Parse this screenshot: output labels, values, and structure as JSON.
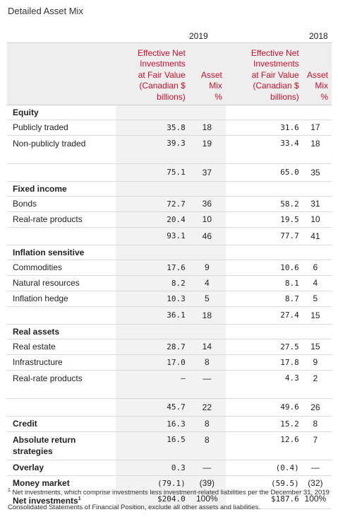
{
  "title": "Detailed Asset Mix",
  "years": {
    "y2019": "2019",
    "y2018": "2018"
  },
  "headers": {
    "effective_net": [
      "Effective Net",
      "Investments",
      "at Fair Value",
      "(Canadian $",
      "billions)"
    ],
    "asset_mix": [
      "Asset",
      "Mix",
      "%"
    ]
  },
  "rows": [
    {
      "type": "section",
      "label": "Equity"
    },
    {
      "type": "item",
      "label": "Publicly traded",
      "v19": "35.8",
      "m19": "18",
      "v18": "31.6",
      "m18": "17"
    },
    {
      "type": "item2",
      "label": "Non-publicly traded",
      "v19": "39.3",
      "m19": "19",
      "v18": "33.4",
      "m18": "18"
    },
    {
      "type": "total",
      "label": "",
      "v19": "75.1",
      "m19": "37",
      "v18": "65.0",
      "m18": "35"
    },
    {
      "type": "section",
      "label": "Fixed income"
    },
    {
      "type": "item",
      "label": "Bonds",
      "v19": "72.7",
      "m19": "36",
      "v18": "58.2",
      "m18": "31"
    },
    {
      "type": "item",
      "label": "Real-rate products",
      "v19": "20.4",
      "m19": "10",
      "v18": "19.5",
      "m18": "10"
    },
    {
      "type": "total",
      "label": "",
      "v19": "93.1",
      "m19": "46",
      "v18": "77.7",
      "m18": "41"
    },
    {
      "type": "section",
      "label": "Inflation sensitive"
    },
    {
      "type": "item",
      "label": "Commodities",
      "v19": "17.6",
      "m19": "9",
      "v18": "10.6",
      "m18": "6"
    },
    {
      "type": "item",
      "label": "Natural resources",
      "v19": "8.2",
      "m19": "4",
      "v18": "8.1",
      "m18": "4"
    },
    {
      "type": "item",
      "label": "Inflation hedge",
      "v19": "10.3",
      "m19": "5",
      "v18": "8.7",
      "m18": "5"
    },
    {
      "type": "total",
      "label": "",
      "v19": "36.1",
      "m19": "18",
      "v18": "27.4",
      "m18": "15"
    },
    {
      "type": "section",
      "label": "Real assets"
    },
    {
      "type": "item",
      "label": "Real estate",
      "v19": "28.7",
      "m19": "14",
      "v18": "27.5",
      "m18": "15"
    },
    {
      "type": "item",
      "label": "Infrastructure",
      "v19": "17.0",
      "m19": "8",
      "v18": "17.8",
      "m18": "9"
    },
    {
      "type": "item2",
      "label": "Real-rate products",
      "v19": "—",
      "m19": "—",
      "v18": "4.3",
      "m18": "2"
    },
    {
      "type": "total",
      "label": "",
      "v19": "45.7",
      "m19": "22",
      "v18": "49.6",
      "m18": "26"
    },
    {
      "type": "boldrow",
      "label": "Credit",
      "v19": "16.3",
      "m19": "8",
      "v18": "15.2",
      "m18": "8"
    },
    {
      "type": "boldrow2",
      "label": "Absolute return strategies",
      "v19": "16.5",
      "m19": "8",
      "v18": "12.6",
      "m18": "7"
    },
    {
      "type": "boldrow",
      "label": "Overlay",
      "v19": "0.3",
      "m19": "—",
      "v18": "(0.4)",
      "m18": "—"
    },
    {
      "type": "boldrow",
      "label": "Money market",
      "v19": "(79.1)",
      "m19": "(39)",
      "v18": "(59.5)",
      "m18": "(32)"
    },
    {
      "type": "boldrow",
      "label": "Net investments",
      "sup": "1",
      "v19": "$204.0",
      "m19": "100%",
      "v18": "$187.6",
      "m18": "100%"
    }
  ],
  "footnote": {
    "marker": "1",
    "text": "Net investments, which comprise investments less investment-related liabilities per the December 31, 2019 Consolidated Statements of Financial Position, exclude all other assets and liabilities."
  }
}
